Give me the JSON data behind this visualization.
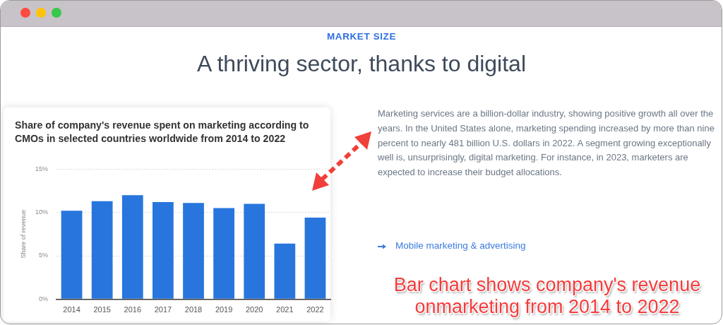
{
  "chart_data": {
    "type": "bar",
    "title": "Share of company's revenue spent on marketing according to CMOs in selected countries worldwide from 2014 to 2022",
    "ylabel": "Share of revenue",
    "categories": [
      "2014",
      "2015",
      "2016",
      "2017",
      "2018",
      "2019",
      "2020",
      "2021",
      "2022"
    ],
    "values": [
      10.2,
      11.3,
      12.0,
      11.2,
      11.1,
      10.5,
      11.0,
      6.4,
      9.4
    ],
    "color": "#2876dd",
    "ylim": [
      0,
      15
    ],
    "yticks": [
      {
        "value": 0,
        "label": "0%"
      },
      {
        "value": 5,
        "label": "5%"
      },
      {
        "value": 10,
        "label": "10%"
      },
      {
        "value": 15,
        "label": "15%"
      }
    ],
    "grid": "y",
    "annotations": [
      "MARKET SIZE",
      "A thriving sector, thanks to digital",
      "Marketing services are a billion-dollar industry, showing positive growth all over the years. In the United States alone, marketing spending increased by more than nine percent to nearly 481 billion U.S. dollars in 2022. A segment growing exceptionally well is, unsurprisingly, digital marketing. For instance, in 2023, marketers are expected to increase their budget allocations.",
      "Mobile marketing & advertising",
      "Bar chart shows company's revenue onmarketing from 2014 to 2022"
    ]
  }
}
